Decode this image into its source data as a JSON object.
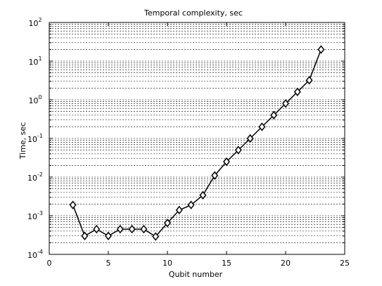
{
  "chart_data": {
    "type": "line",
    "title": "Temporal complexity, sec",
    "xlabel": "Qubit number",
    "ylabel": "Time, sec",
    "xlim": [
      0,
      25
    ],
    "ylim": [
      0.0001,
      100
    ],
    "yscale": "log",
    "grid": {
      "x": false,
      "y": true,
      "minor_y": true
    },
    "x_ticks": [
      "0",
      "5",
      "10",
      "15",
      "20",
      "25"
    ],
    "y_ticks": [
      {
        "base": "10",
        "exp": "-4"
      },
      {
        "base": "10",
        "exp": "-3"
      },
      {
        "base": "10",
        "exp": "-2"
      },
      {
        "base": "10",
        "exp": "-1"
      },
      {
        "base": "10",
        "exp": "0"
      },
      {
        "base": "10",
        "exp": "1"
      },
      {
        "base": "10",
        "exp": "2"
      }
    ],
    "marker": "diamond",
    "line_color": "#000000",
    "marker_fill": "#ffffff",
    "x": [
      2,
      3,
      4,
      5,
      6,
      7,
      8,
      9,
      10,
      11,
      12,
      13,
      14,
      15,
      16,
      17,
      18,
      19,
      20,
      21,
      22,
      23
    ],
    "y": [
      0.0019,
      0.0003,
      0.00045,
      0.0003,
      0.00045,
      0.00045,
      0.00045,
      0.00029,
      0.00065,
      0.0014,
      0.0019,
      0.0034,
      0.011,
      0.025,
      0.05,
      0.1,
      0.2,
      0.4,
      0.8,
      1.6,
      3.2,
      20
    ]
  }
}
